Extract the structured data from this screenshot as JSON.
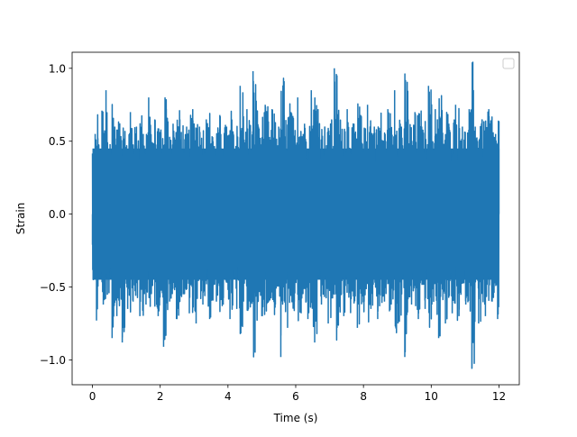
{
  "chart_data": {
    "type": "line",
    "title": "",
    "xlabel": "Time (s)",
    "ylabel": "Strain",
    "xlim": [
      -0.6,
      12.6
    ],
    "ylim": [
      -1.17,
      1.11
    ],
    "x_ticks": [
      0,
      2,
      4,
      6,
      8,
      10,
      12
    ],
    "x_tick_labels": [
      "0",
      "2",
      "4",
      "6",
      "8",
      "10",
      "12"
    ],
    "y_ticks": [
      -1.0,
      -0.5,
      0.0,
      0.5,
      1.0
    ],
    "y_tick_labels": [
      "−1.0",
      "−0.5",
      "0.0",
      "0.5",
      "1.0"
    ],
    "grid": false,
    "legend": {
      "placement": "top-right",
      "entries": []
    },
    "series": [
      {
        "color": "#1f77b4",
        "x_start": 0,
        "x_end": 12,
        "points": [
          [
            0.0,
            -0.21
          ],
          [
            0.08,
            0.55
          ],
          [
            0.12,
            -0.73
          ],
          [
            0.16,
            0.52
          ],
          [
            0.2,
            -0.45
          ],
          [
            0.28,
            0.71
          ],
          [
            0.32,
            -0.62
          ],
          [
            0.4,
            0.85
          ],
          [
            0.44,
            -0.55
          ],
          [
            0.52,
            0.48
          ],
          [
            0.58,
            -0.85
          ],
          [
            0.66,
            0.6
          ],
          [
            0.72,
            -0.7
          ],
          [
            0.8,
            0.62
          ],
          [
            0.88,
            -0.88
          ],
          [
            0.96,
            0.5
          ],
          [
            1.04,
            -0.65
          ],
          [
            1.12,
            0.7
          ],
          [
            1.2,
            -0.6
          ],
          [
            1.3,
            0.6
          ],
          [
            1.4,
            -0.7
          ],
          [
            1.5,
            0.55
          ],
          [
            1.58,
            -0.62
          ],
          [
            1.66,
            0.8
          ],
          [
            1.74,
            -0.5
          ],
          [
            1.84,
            0.65
          ],
          [
            1.94,
            -0.7
          ],
          [
            2.02,
            0.58
          ],
          [
            2.1,
            -0.91
          ],
          [
            2.18,
            0.72
          ],
          [
            2.28,
            -0.6
          ],
          [
            2.38,
            0.62
          ],
          [
            2.48,
            -0.72
          ],
          [
            2.58,
            0.65
          ],
          [
            2.68,
            -0.55
          ],
          [
            2.78,
            0.6
          ],
          [
            2.86,
            -0.68
          ],
          [
            2.96,
            0.72
          ],
          [
            3.06,
            -0.75
          ],
          [
            3.16,
            0.6
          ],
          [
            3.26,
            -0.62
          ],
          [
            3.36,
            0.65
          ],
          [
            3.46,
            -0.72
          ],
          [
            3.56,
            0.5
          ],
          [
            3.66,
            -0.6
          ],
          [
            3.76,
            0.68
          ],
          [
            3.86,
            -0.62
          ],
          [
            3.96,
            0.6
          ],
          [
            4.06,
            -0.72
          ],
          [
            4.16,
            0.55
          ],
          [
            4.26,
            -0.65
          ],
          [
            4.36,
            0.88
          ],
          [
            4.46,
            -0.6
          ],
          [
            4.56,
            0.72
          ],
          [
            4.66,
            -0.64
          ],
          [
            4.74,
            0.98
          ],
          [
            4.8,
            -0.95
          ],
          [
            4.9,
            0.6
          ],
          [
            5.0,
            -0.7
          ],
          [
            5.1,
            0.75
          ],
          [
            5.2,
            -0.6
          ],
          [
            5.3,
            0.72
          ],
          [
            5.4,
            -0.62
          ],
          [
            5.5,
            0.6
          ],
          [
            5.56,
            -0.98
          ],
          [
            5.66,
            0.68
          ],
          [
            5.76,
            -0.78
          ],
          [
            5.86,
            0.7
          ],
          [
            5.96,
            -0.6
          ],
          [
            6.06,
            0.8
          ],
          [
            6.16,
            -0.68
          ],
          [
            6.26,
            0.62
          ],
          [
            6.36,
            -0.72
          ],
          [
            6.46,
            0.85
          ],
          [
            6.56,
            -0.88
          ],
          [
            6.66,
            0.72
          ],
          [
            6.76,
            -0.62
          ],
          [
            6.86,
            0.6
          ],
          [
            6.96,
            -0.75
          ],
          [
            7.06,
            0.65
          ],
          [
            7.14,
            1.0
          ],
          [
            7.22,
            -0.78
          ],
          [
            7.32,
            0.6
          ],
          [
            7.42,
            -0.7
          ],
          [
            7.52,
            0.72
          ],
          [
            7.62,
            -0.62
          ],
          [
            7.72,
            0.62
          ],
          [
            7.82,
            -0.78
          ],
          [
            7.92,
            0.68
          ],
          [
            8.02,
            -0.6
          ],
          [
            8.12,
            0.75
          ],
          [
            8.22,
            -0.65
          ],
          [
            8.32,
            0.6
          ],
          [
            8.42,
            -0.72
          ],
          [
            8.52,
            0.62
          ],
          [
            8.62,
            -0.6
          ],
          [
            8.72,
            0.72
          ],
          [
            8.82,
            -0.62
          ],
          [
            8.92,
            0.85
          ],
          [
            9.02,
            -0.75
          ],
          [
            9.12,
            0.6
          ],
          [
            9.22,
            -0.98
          ],
          [
            9.32,
            0.65
          ],
          [
            9.42,
            -0.62
          ],
          [
            9.52,
            0.7
          ],
          [
            9.62,
            -0.72
          ],
          [
            9.72,
            0.6
          ],
          [
            9.82,
            -0.65
          ],
          [
            9.92,
            0.88
          ],
          [
            10.02,
            -0.62
          ],
          [
            10.12,
            0.72
          ],
          [
            10.22,
            -0.85
          ],
          [
            10.32,
            0.6
          ],
          [
            10.42,
            -0.75
          ],
          [
            10.52,
            0.62
          ],
          [
            10.62,
            -0.68
          ],
          [
            10.72,
            0.75
          ],
          [
            10.82,
            -0.7
          ],
          [
            10.92,
            0.6
          ],
          [
            11.02,
            -0.62
          ],
          [
            11.12,
            0.72
          ],
          [
            11.2,
            -1.06
          ],
          [
            11.3,
            0.6
          ],
          [
            11.4,
            -0.75
          ],
          [
            11.5,
            0.65
          ],
          [
            11.6,
            -0.7
          ],
          [
            11.7,
            0.72
          ],
          [
            11.8,
            -0.6
          ],
          [
            11.9,
            0.55
          ],
          [
            11.96,
            -0.72
          ],
          [
            12.0,
            0.45
          ]
        ]
      }
    ]
  }
}
